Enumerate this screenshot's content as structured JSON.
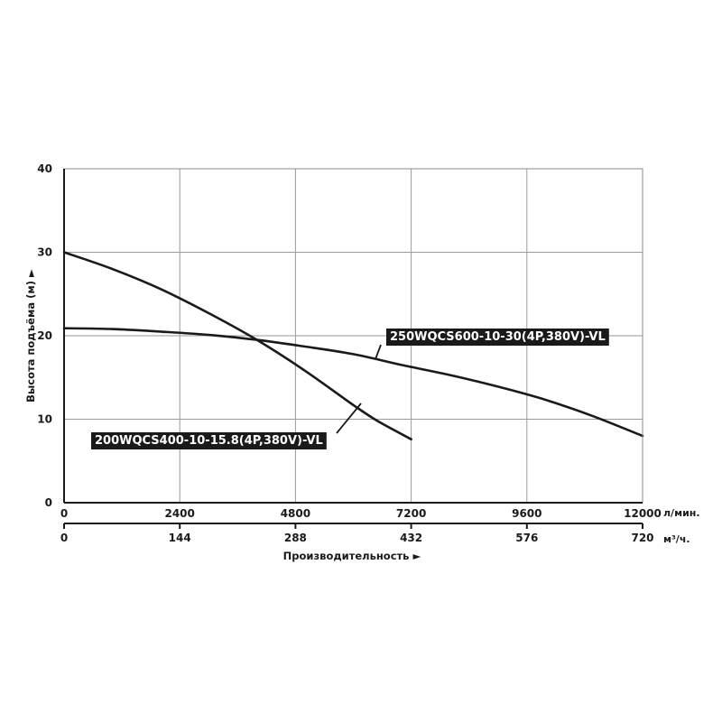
{
  "chart_data": {
    "type": "line",
    "ylabel": "Высота подъёма (м) ►",
    "xlabel": "Производительность ►",
    "ylim": [
      0,
      40
    ],
    "yticks": [
      0,
      10,
      20,
      30,
      40
    ],
    "xlim": [
      0,
      12000
    ],
    "xticks": [
      0,
      2400,
      4800,
      7200,
      9600,
      12000
    ],
    "xunit": "л/мин.",
    "x2ticks": [
      0,
      144,
      288,
      432,
      576,
      720
    ],
    "x2unit": "м³/ч.",
    "grid": true,
    "series": [
      {
        "name": "250WQCS600-10-30(4P,380V)-VL",
        "x": [
          0,
          1000,
          2000,
          3000,
          4000,
          5000,
          6000,
          7000,
          8000,
          9000,
          10000,
          11000,
          12000
        ],
        "y": [
          20.9,
          20.8,
          20.5,
          20.1,
          19.5,
          18.7,
          17.8,
          16.5,
          15.3,
          13.9,
          12.3,
          10.3,
          8.0
        ]
      },
      {
        "name": "200WQCS400-10-15.8(4P,380V)-VL",
        "x": [
          0,
          1000,
          2000,
          3000,
          4000,
          5000,
          6000,
          6500,
          7200
        ],
        "y": [
          30.0,
          28.0,
          25.6,
          22.7,
          19.5,
          15.8,
          11.7,
          9.8,
          7.6
        ]
      }
    ]
  }
}
